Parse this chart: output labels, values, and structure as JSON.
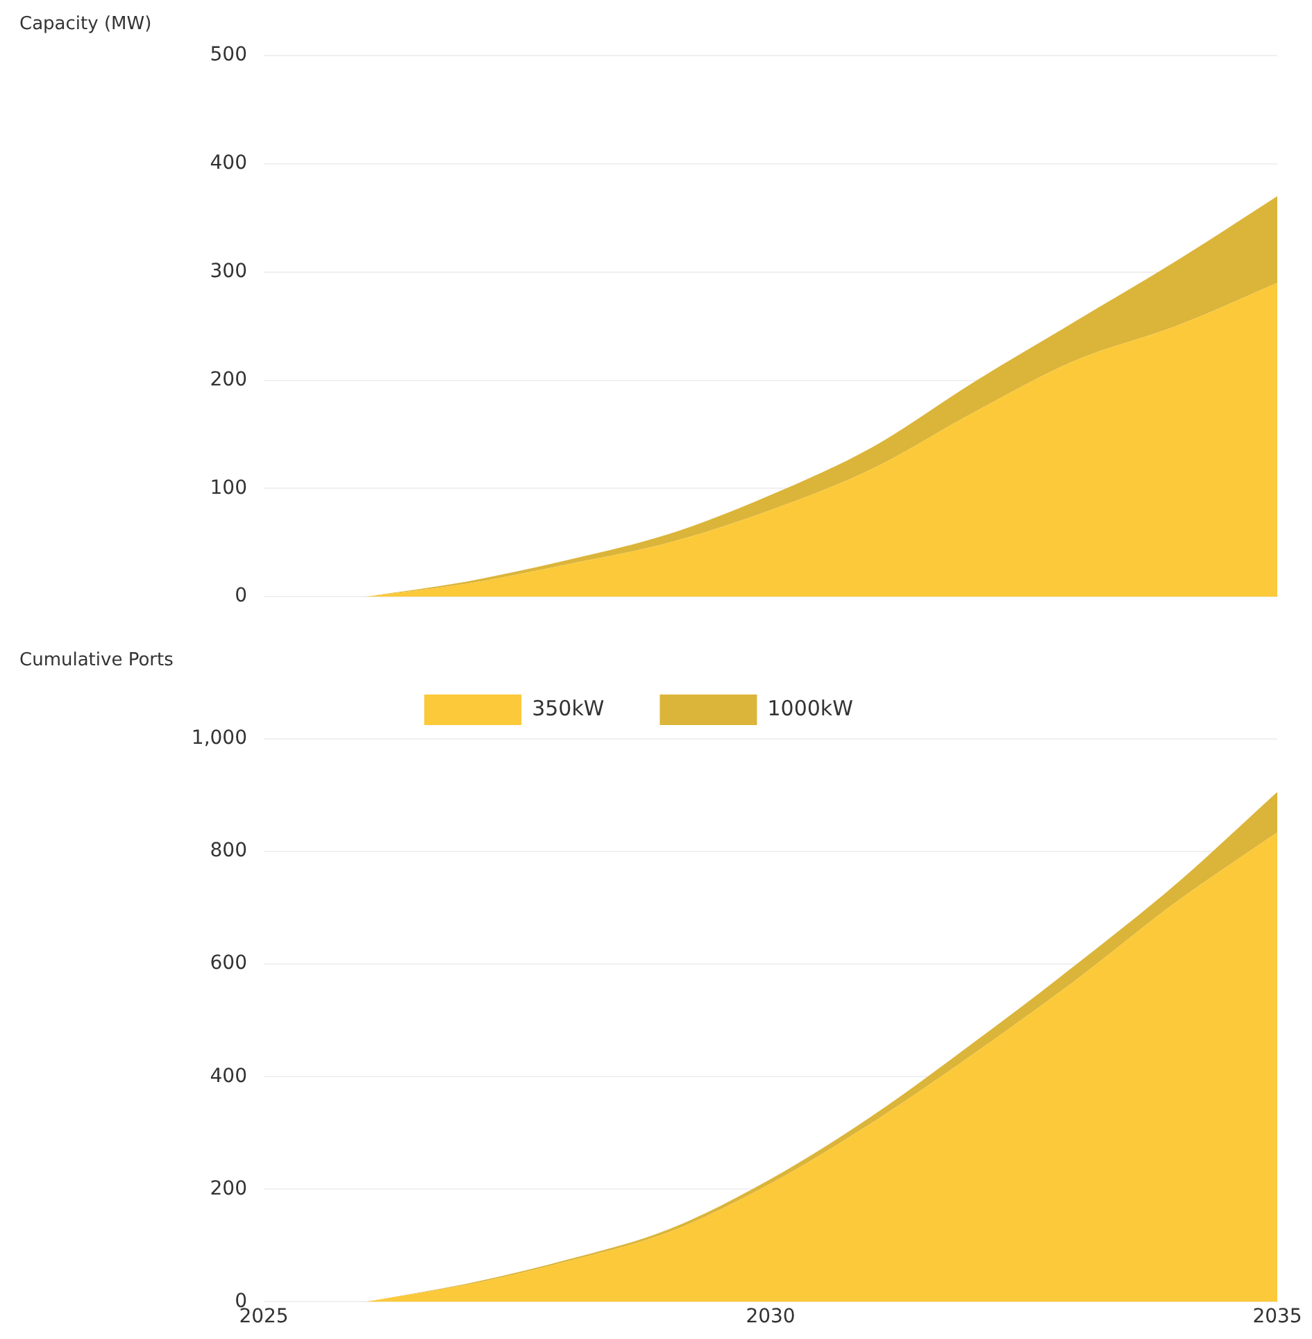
{
  "chart_data": [
    {
      "type": "area",
      "ylabel": "Capacity (MW)",
      "stacked": true,
      "x": [
        2026,
        2027,
        2028,
        2029,
        2030,
        2031,
        2032,
        2033,
        2034,
        2035
      ],
      "xlim": [
        2025,
        2035
      ],
      "xticks": [
        2025,
        2030,
        2035
      ],
      "ylim": [
        0,
        500
      ],
      "yticks": [
        0,
        100,
        200,
        300,
        400,
        500
      ],
      "grid": "y",
      "legend": false,
      "tick_labels": "y",
      "series": [
        {
          "color": "#fbc93a",
          "values": [
            0,
            12,
            30,
            50,
            80,
            118,
            170,
            218,
            250,
            290
          ]
        },
        {
          "color": "#dbb43a",
          "values": [
            0,
            2,
            4,
            8,
            14,
            20,
            28,
            36,
            60,
            80
          ]
        }
      ]
    },
    {
      "type": "area",
      "ylabel": "Cumulative Ports",
      "stacked": true,
      "x": [
        2026,
        2027,
        2028,
        2029,
        2030,
        2031,
        2032,
        2033,
        2034,
        2035
      ],
      "xlim": [
        2025,
        2035
      ],
      "xticks": [
        2025,
        2030,
        2035
      ],
      "ylim": [
        0,
        1000
      ],
      "yticks": [
        0,
        200,
        400,
        600,
        800,
        {
          "value": 1000,
          "label": "1,000"
        }
      ],
      "grid": "y",
      "legend": "top",
      "series": [
        {
          "name": "350kW",
          "color": "#fbc93a",
          "values": [
            0,
            30,
            72,
            124,
            210,
            318,
            440,
            570,
            710,
            834
          ]
        },
        {
          "name": "1000kW",
          "color": "#dbb43a",
          "values": [
            0,
            2,
            3,
            5,
            8,
            12,
            20,
            27,
            32,
            72
          ]
        }
      ]
    }
  ]
}
